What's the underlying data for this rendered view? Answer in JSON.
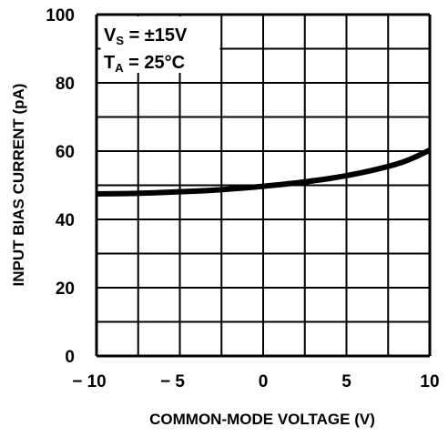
{
  "chart_data": {
    "type": "line",
    "xlabel": "COMMON-MODE VOLTAGE (V)",
    "ylabel": "INPUT BIAS CURRENT (pA)",
    "xlim": [
      -10,
      10
    ],
    "ylim": [
      0,
      100
    ],
    "x_ticks": [
      -10,
      -5,
      0,
      5,
      10
    ],
    "y_ticks": [
      0,
      20,
      40,
      60,
      80,
      100
    ],
    "x_tick_labels": [
      "−10",
      "−5",
      "0",
      "5",
      "10"
    ],
    "y_tick_labels": [
      "0",
      "20",
      "40",
      "60",
      "80",
      "100"
    ],
    "grid": true,
    "grid_step_x": 2.5,
    "grid_step_y": 10,
    "annotations": [
      {
        "main": "V",
        "sub": "S",
        "rest": " = ±15V"
      },
      {
        "main": "T",
        "sub": "A",
        "rest": " = 25°C"
      }
    ],
    "series": [
      {
        "x": [
          -10,
          -8,
          -6,
          -4,
          -2,
          0,
          2,
          4,
          6,
          8,
          9,
          10
        ],
        "values": [
          47.5,
          47.6,
          47.9,
          48.3,
          48.9,
          49.7,
          50.7,
          52.0,
          53.8,
          56.2,
          58.0,
          60.3
        ]
      }
    ]
  }
}
